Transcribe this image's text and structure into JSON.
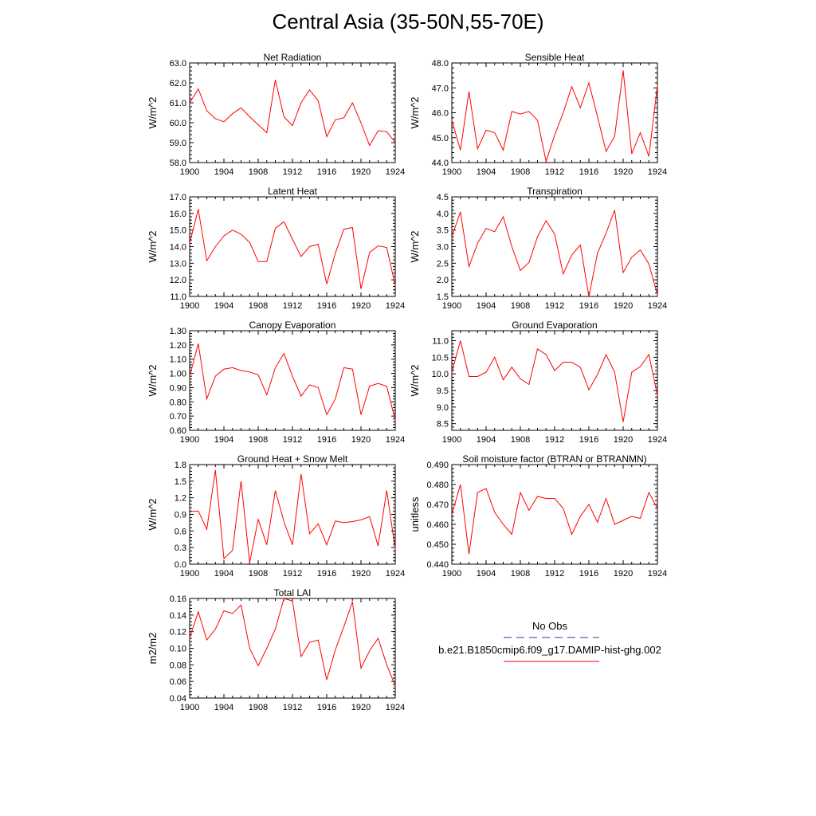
{
  "title": "Central Asia (35-50N,55-70E)",
  "legend": {
    "obs_label": "No Obs",
    "obs_color": "#2a3a9a",
    "model_label": "b.e21.B1850cmip6.f09_g17.DAMIP-hist-ghg.002",
    "model_color": "#ff0000"
  },
  "chart_data": [
    {
      "type": "line",
      "title": "Net Radiation",
      "ylabel": "W/m^2",
      "xlim": [
        1900,
        1924
      ],
      "ylim": [
        58.0,
        63.0
      ],
      "yticks": [
        "58.0",
        "59.0",
        "60.0",
        "61.0",
        "62.0",
        "63.0"
      ],
      "xticks": [
        "1900",
        "1904",
        "1908",
        "1912",
        "1916",
        "1920",
        "1924"
      ],
      "x": [
        1900,
        1901,
        1902,
        1903,
        1904,
        1905,
        1906,
        1907,
        1908,
        1909,
        1910,
        1911,
        1912,
        1913,
        1914,
        1915,
        1916,
        1917,
        1918,
        1919,
        1920,
        1921,
        1922,
        1923,
        1924
      ],
      "series": [
        {
          "values": [
            61.0,
            61.7,
            60.6,
            60.2,
            60.05,
            60.45,
            60.75,
            60.3,
            59.9,
            59.5,
            62.15,
            60.3,
            59.85,
            61.0,
            61.65,
            61.1,
            59.3,
            60.15,
            60.25,
            61.0,
            60.0,
            58.85,
            59.6,
            59.55,
            59.0
          ]
        }
      ]
    },
    {
      "type": "line",
      "title": "Sensible Heat",
      "ylabel": "W/m^2",
      "xlim": [
        1900,
        1924
      ],
      "ylim": [
        44.0,
        48.0
      ],
      "yticks": [
        "44.0",
        "45.0",
        "46.0",
        "47.0",
        "48.0"
      ],
      "xticks": [
        "1900",
        "1904",
        "1908",
        "1912",
        "1916",
        "1920",
        "1924"
      ],
      "x": [
        1900,
        1901,
        1902,
        1903,
        1904,
        1905,
        1906,
        1907,
        1908,
        1909,
        1910,
        1911,
        1912,
        1913,
        1914,
        1915,
        1916,
        1917,
        1918,
        1919,
        1920,
        1921,
        1922,
        1923,
        1924
      ],
      "series": [
        {
          "values": [
            45.7,
            44.5,
            46.85,
            44.55,
            45.3,
            45.2,
            44.5,
            46.05,
            45.95,
            46.05,
            45.7,
            44.05,
            45.1,
            46.0,
            47.05,
            46.2,
            47.2,
            45.85,
            44.45,
            45.05,
            47.7,
            44.35,
            45.2,
            44.25,
            47.1
          ]
        }
      ]
    },
    {
      "type": "line",
      "title": "Latent Heat",
      "ylabel": "W/m^2",
      "xlim": [
        1900,
        1924
      ],
      "ylim": [
        11.0,
        17.0
      ],
      "yticks": [
        "11.0",
        "12.0",
        "13.0",
        "14.0",
        "15.0",
        "16.0",
        "17.0"
      ],
      "xticks": [
        "1900",
        "1904",
        "1908",
        "1912",
        "1916",
        "1920",
        "1924"
      ],
      "x": [
        1900,
        1901,
        1902,
        1903,
        1904,
        1905,
        1906,
        1907,
        1908,
        1909,
        1910,
        1911,
        1912,
        1913,
        1914,
        1915,
        1916,
        1917,
        1918,
        1919,
        1920,
        1921,
        1922,
        1923,
        1924
      ],
      "series": [
        {
          "values": [
            14.2,
            16.25,
            13.15,
            14.0,
            14.65,
            15.0,
            14.75,
            14.25,
            13.1,
            13.1,
            15.1,
            15.5,
            14.45,
            13.4,
            14.0,
            14.15,
            11.75,
            13.6,
            15.05,
            15.15,
            11.45,
            13.65,
            14.05,
            13.95,
            11.65
          ]
        }
      ]
    },
    {
      "type": "line",
      "title": "Transpiration",
      "ylabel": "W/m^2",
      "xlim": [
        1900,
        1924
      ],
      "ylim": [
        1.5,
        4.5
      ],
      "yticks": [
        "1.5",
        "2.0",
        "2.5",
        "3.0",
        "3.5",
        "4.0",
        "4.5"
      ],
      "xticks": [
        "1900",
        "1904",
        "1908",
        "1912",
        "1916",
        "1920",
        "1924"
      ],
      "x": [
        1900,
        1901,
        1902,
        1903,
        1904,
        1905,
        1906,
        1907,
        1908,
        1909,
        1910,
        1911,
        1912,
        1913,
        1914,
        1915,
        1916,
        1917,
        1918,
        1919,
        1920,
        1921,
        1922,
        1923,
        1924
      ],
      "series": [
        {
          "values": [
            3.3,
            4.05,
            2.4,
            3.1,
            3.55,
            3.45,
            3.9,
            3.0,
            2.28,
            2.52,
            3.3,
            3.78,
            3.38,
            2.18,
            2.75,
            3.05,
            1.5,
            2.8,
            3.4,
            4.1,
            2.22,
            2.68,
            2.9,
            2.48,
            1.55
          ]
        }
      ]
    },
    {
      "type": "line",
      "title": "Canopy Evaporation",
      "ylabel": "W/m^2",
      "xlim": [
        1900,
        1924
      ],
      "ylim": [
        0.6,
        1.3
      ],
      "yticks": [
        "0.60",
        "0.70",
        "0.80",
        "0.90",
        "1.00",
        "1.10",
        "1.20",
        "1.30"
      ],
      "xticks": [
        "1900",
        "1904",
        "1908",
        "1912",
        "1916",
        "1920",
        "1924"
      ],
      "x": [
        1900,
        1901,
        1902,
        1903,
        1904,
        1905,
        1906,
        1907,
        1908,
        1909,
        1910,
        1911,
        1912,
        1913,
        1914,
        1915,
        1916,
        1917,
        1918,
        1919,
        1920,
        1921,
        1922,
        1923,
        1924
      ],
      "series": [
        {
          "values": [
            0.98,
            1.21,
            0.82,
            0.98,
            1.03,
            1.04,
            1.02,
            1.01,
            0.99,
            0.85,
            1.04,
            1.14,
            0.98,
            0.84,
            0.92,
            0.9,
            0.71,
            0.82,
            1.04,
            1.03,
            0.71,
            0.91,
            0.93,
            0.91,
            0.67
          ]
        }
      ]
    },
    {
      "type": "line",
      "title": "Ground Evaporation",
      "ylabel": "W/m^2",
      "xlim": [
        1900,
        1924
      ],
      "ylim": [
        8.3,
        11.3
      ],
      "yticks": [
        "8.5",
        "9.0",
        "9.5",
        "10.0",
        "10.5",
        "11.0"
      ],
      "xticks": [
        "1900",
        "1904",
        "1908",
        "1912",
        "1916",
        "1920",
        "1924"
      ],
      "x": [
        1900,
        1901,
        1902,
        1903,
        1904,
        1905,
        1906,
        1907,
        1908,
        1909,
        1910,
        1911,
        1912,
        1913,
        1914,
        1915,
        1916,
        1917,
        1918,
        1919,
        1920,
        1921,
        1922,
        1923,
        1924
      ],
      "series": [
        {
          "values": [
            10.05,
            11.0,
            9.92,
            9.92,
            10.05,
            10.5,
            9.82,
            10.2,
            9.85,
            9.68,
            10.75,
            10.58,
            10.1,
            10.35,
            10.35,
            10.2,
            9.52,
            9.98,
            10.58,
            10.05,
            8.55,
            10.05,
            10.22,
            10.58,
            9.35
          ]
        }
      ]
    },
    {
      "type": "line",
      "title": "Ground Heat + Snow Melt",
      "ylabel": "W/m^2",
      "xlim": [
        1900,
        1924
      ],
      "ylim": [
        0.0,
        1.8
      ],
      "yticks": [
        "0.0",
        "0.3",
        "0.6",
        "0.9",
        "1.2",
        "1.5",
        "1.8"
      ],
      "xticks": [
        "1900",
        "1904",
        "1908",
        "1912",
        "1916",
        "1920",
        "1924"
      ],
      "x": [
        1900,
        1901,
        1902,
        1903,
        1904,
        1905,
        1906,
        1907,
        1908,
        1909,
        1910,
        1911,
        1912,
        1913,
        1914,
        1915,
        1916,
        1917,
        1918,
        1919,
        1920,
        1921,
        1922,
        1923,
        1924
      ],
      "series": [
        {
          "values": [
            0.95,
            0.96,
            0.63,
            1.7,
            0.1,
            0.25,
            1.5,
            0.03,
            0.81,
            0.35,
            1.33,
            0.77,
            0.35,
            1.63,
            0.55,
            0.73,
            0.35,
            0.78,
            0.75,
            0.77,
            0.8,
            0.86,
            0.33,
            1.33,
            0.27
          ]
        }
      ]
    },
    {
      "type": "line",
      "title": "Soil moisture factor (BTRAN or BTRANMN)",
      "ylabel": "unitless",
      "xlim": [
        1900,
        1924
      ],
      "ylim": [
        0.44,
        0.49
      ],
      "yticks": [
        "0.440",
        "0.450",
        "0.460",
        "0.470",
        "0.480",
        "0.490"
      ],
      "xticks": [
        "1900",
        "1904",
        "1908",
        "1912",
        "1916",
        "1920",
        "1924"
      ],
      "x": [
        1900,
        1901,
        1902,
        1903,
        1904,
        1905,
        1906,
        1907,
        1908,
        1909,
        1910,
        1911,
        1912,
        1913,
        1914,
        1915,
        1916,
        1917,
        1918,
        1919,
        1920,
        1921,
        1922,
        1923,
        1924
      ],
      "series": [
        {
          "values": [
            0.465,
            0.48,
            0.445,
            0.476,
            0.478,
            0.466,
            0.46,
            0.455,
            0.476,
            0.467,
            0.474,
            0.473,
            0.473,
            0.468,
            0.455,
            0.464,
            0.47,
            0.461,
            0.473,
            0.46,
            0.462,
            0.464,
            0.463,
            0.476,
            0.468
          ]
        }
      ]
    },
    {
      "type": "line",
      "title": "Total LAI",
      "ylabel": "m2/m2",
      "xlim": [
        1900,
        1924
      ],
      "ylim": [
        0.04,
        0.16
      ],
      "yticks": [
        "0.04",
        "0.06",
        "0.08",
        "0.10",
        "0.12",
        "0.14",
        "0.16"
      ],
      "xticks": [
        "1900",
        "1904",
        "1908",
        "1912",
        "1916",
        "1920",
        "1924"
      ],
      "x": [
        1900,
        1901,
        1902,
        1903,
        1904,
        1905,
        1906,
        1907,
        1908,
        1909,
        1910,
        1911,
        1912,
        1913,
        1914,
        1915,
        1916,
        1917,
        1918,
        1919,
        1920,
        1921,
        1922,
        1923,
        1924
      ],
      "series": [
        {
          "values": [
            0.113,
            0.144,
            0.11,
            0.123,
            0.145,
            0.142,
            0.152,
            0.1,
            0.079,
            0.1,
            0.123,
            0.16,
            0.157,
            0.09,
            0.107,
            0.11,
            0.062,
            0.098,
            0.126,
            0.156,
            0.076,
            0.097,
            0.112,
            0.08,
            0.055
          ]
        }
      ]
    }
  ]
}
